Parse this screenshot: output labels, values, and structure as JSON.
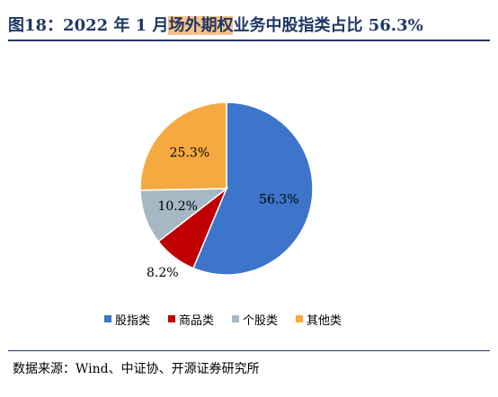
{
  "header": {
    "title_prefix": "图18：2022 年 1 月",
    "title_highlight": "场外期权",
    "title_suffix": "业务中股指类占比 56.3%"
  },
  "chart_data": {
    "type": "pie",
    "categories": [
      "股指类",
      "商品类",
      "个股类",
      "其他类"
    ],
    "values": [
      56.3,
      8.2,
      10.2,
      25.3
    ],
    "labels": [
      "56.3%",
      "8.2%",
      "10.2%",
      "25.3%"
    ],
    "colors": [
      "#3c75c9",
      "#c00000",
      "#a5b8c3",
      "#f5a940"
    ],
    "legend_position": "bottom"
  },
  "footer": {
    "source": "数据来源：Wind、中证协、开源证券研究所"
  }
}
